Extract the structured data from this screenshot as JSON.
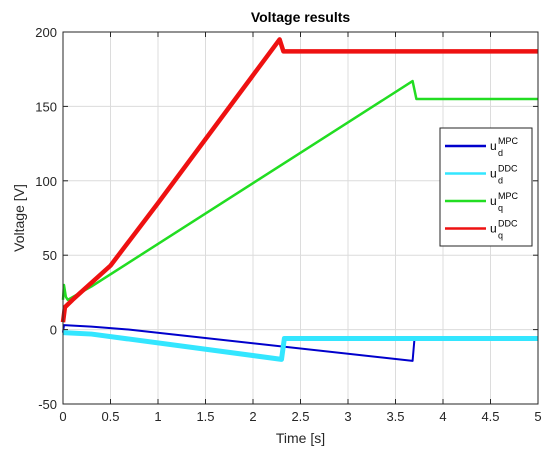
{
  "chart_data": {
    "type": "line",
    "title": "Voltage results",
    "xlabel": "Time [s]",
    "ylabel": "Voltage [V]",
    "xlim": [
      0,
      5
    ],
    "ylim": [
      -50,
      200
    ],
    "xticks": [
      0,
      0.5,
      1,
      1.5,
      2,
      2.5,
      3,
      3.5,
      4,
      4.5,
      5
    ],
    "xtick_labels": [
      "0",
      "0.5",
      "1",
      "1.5",
      "2",
      "2.5",
      "3",
      "3.5",
      "4",
      "4.5",
      "5"
    ],
    "yticks": [
      -50,
      0,
      50,
      100,
      150,
      200
    ],
    "ytick_labels": [
      "-50",
      "0",
      "50",
      "100",
      "150",
      "200"
    ],
    "grid": true,
    "legend_position": "right",
    "series": [
      {
        "name": "u_d^MPC",
        "label_base": "u",
        "label_sub": "d",
        "label_sup": "MPC",
        "color": "#0000cc",
        "stroke": 2,
        "points": [
          [
            0,
            -2
          ],
          [
            0.01,
            3
          ],
          [
            0.3,
            2
          ],
          [
            0.7,
            0
          ],
          [
            3.68,
            -21
          ],
          [
            3.7,
            -6
          ],
          [
            5,
            -6
          ]
        ]
      },
      {
        "name": "u_d^DDC",
        "label_base": "u",
        "label_sub": "d",
        "label_sup": "DDC",
        "color": "#33e6ff",
        "stroke": 5,
        "points": [
          [
            0,
            -2
          ],
          [
            0.3,
            -3
          ],
          [
            2.3,
            -20
          ],
          [
            2.33,
            -6
          ],
          [
            5,
            -6
          ]
        ]
      },
      {
        "name": "u_q^MPC",
        "label_base": "u",
        "label_sub": "q",
        "label_sup": "MPC",
        "color": "#22dd22",
        "stroke": 2.5,
        "points": [
          [
            0,
            20
          ],
          [
            0.01,
            30
          ],
          [
            0.03,
            22
          ],
          [
            0.05,
            20
          ],
          [
            0.3,
            29
          ],
          [
            3.68,
            167
          ],
          [
            3.72,
            155
          ],
          [
            5,
            155
          ]
        ]
      },
      {
        "name": "u_q^DDC",
        "label_base": "u",
        "label_sub": "q",
        "label_sup": "DDC",
        "color": "#ee1111",
        "stroke": 4.5,
        "points": [
          [
            0,
            5
          ],
          [
            0.02,
            15
          ],
          [
            0.1,
            20
          ],
          [
            0.5,
            43
          ],
          [
            1,
            85
          ],
          [
            2.28,
            195
          ],
          [
            2.32,
            187
          ],
          [
            5,
            187
          ]
        ]
      }
    ]
  }
}
